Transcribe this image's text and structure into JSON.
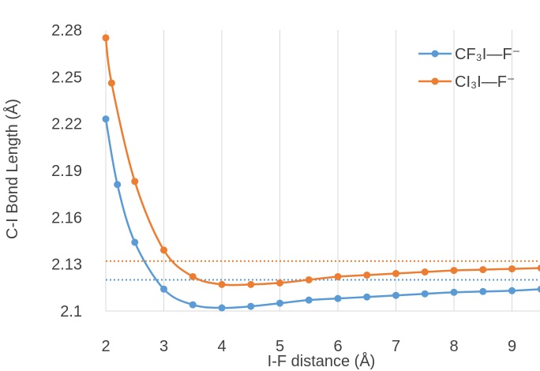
{
  "chart_data": {
    "type": "scatter",
    "title": "",
    "xlabel": "I-F distance (Å)",
    "ylabel": "C-I Bond Length (Å)",
    "xlim": [
      2,
      9.5
    ],
    "ylim": [
      2.1,
      2.28
    ],
    "xticks": [
      2,
      3,
      4,
      5,
      6,
      7,
      8,
      9
    ],
    "xtick_labels": [
      "2",
      "3",
      "4",
      "5",
      "6",
      "7",
      "8",
      "9"
    ],
    "yticks": [
      2.1,
      2.13,
      2.16,
      2.19,
      2.22,
      2.25,
      2.28
    ],
    "ytick_labels": [
      "2.1",
      "2.13",
      "2.16",
      "2.19",
      "2.22",
      "2.25",
      "2.28"
    ],
    "grid": "vertical",
    "legend_position": "top-right",
    "series": [
      {
        "name": "CF₃I—F⁻",
        "color": "#5B9BD5",
        "x": [
          2.0,
          2.2,
          2.5,
          3.0,
          3.5,
          4.0,
          4.5,
          5.0,
          5.5,
          6.0,
          6.5,
          7.0,
          7.5,
          8.0,
          8.5,
          9.0,
          9.5
        ],
        "y": [
          2.223,
          2.181,
          2.144,
          2.114,
          2.104,
          2.102,
          2.103,
          2.105,
          2.107,
          2.108,
          2.109,
          2.11,
          2.111,
          2.112,
          2.1125,
          2.113,
          2.114
        ],
        "reference_line": 2.12
      },
      {
        "name": "CI₃I—F⁻",
        "color": "#ED7D31",
        "x": [
          2.0,
          2.1,
          2.5,
          3.0,
          3.5,
          4.0,
          4.5,
          5.0,
          5.5,
          6.0,
          6.5,
          7.0,
          7.5,
          8.0,
          8.5,
          9.0,
          9.5
        ],
        "y": [
          2.275,
          2.246,
          2.183,
          2.139,
          2.122,
          2.117,
          2.117,
          2.118,
          2.12,
          2.122,
          2.123,
          2.124,
          2.125,
          2.126,
          2.1265,
          2.127,
          2.1275
        ],
        "reference_line": 2.132
      }
    ]
  }
}
